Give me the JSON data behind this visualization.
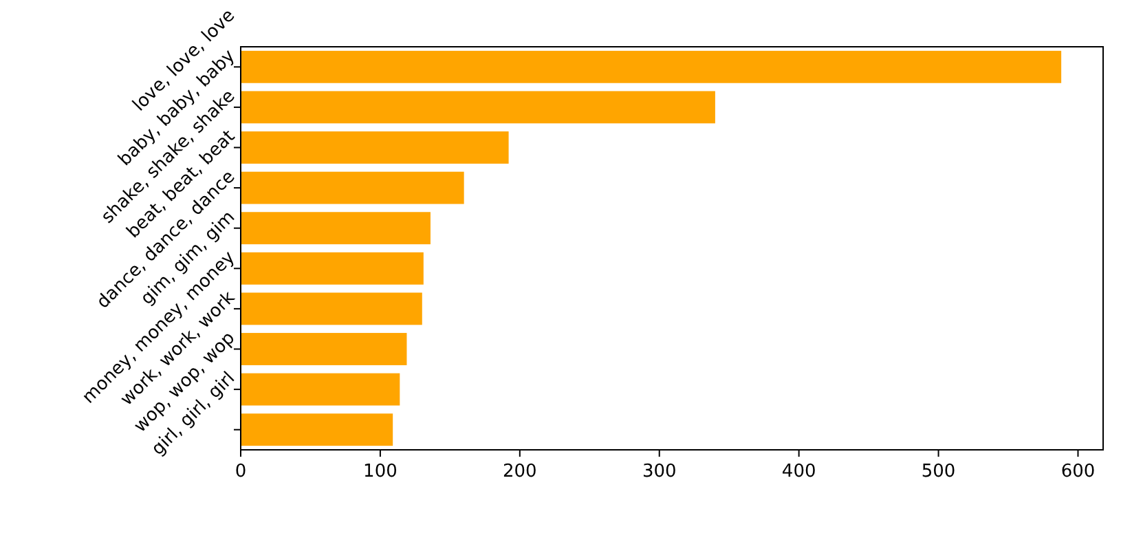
{
  "chart_data": {
    "type": "bar",
    "orientation": "horizontal",
    "categories": [
      "love, love, love",
      "baby, baby, baby",
      "shake, shake, shake",
      "beat, beat, beat",
      "dance, dance, dance",
      "gim, gim, gim",
      "money, money, money",
      "work, work, work",
      "wop, wop, wop",
      "girl, girl, girl"
    ],
    "values": [
      588,
      340,
      192,
      160,
      136,
      131,
      130,
      119,
      114,
      109
    ],
    "color": "#ffa500",
    "xlim": [
      0,
      618
    ],
    "xticks": [
      0,
      100,
      200,
      300,
      400,
      500,
      600
    ]
  }
}
